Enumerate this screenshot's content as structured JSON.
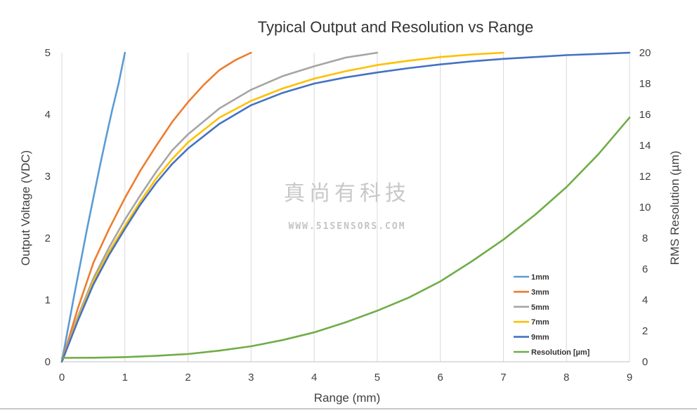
{
  "chart_data": {
    "type": "line",
    "title": "Typical Output and Resolution vs Range",
    "xlabel": "Range (mm)",
    "ylabel": "Output Voltage (VDC)",
    "y2label": "RMS Resolution (µm)",
    "xlim": [
      0,
      9
    ],
    "ylim": [
      0,
      5
    ],
    "y2lim": [
      0,
      20
    ],
    "x_ticks": [
      "0",
      "1",
      "2",
      "3",
      "4",
      "5",
      "6",
      "7",
      "8",
      "9"
    ],
    "y_ticks": [
      "0",
      "1",
      "2",
      "3",
      "4",
      "5"
    ],
    "y2_ticks": [
      "0",
      "2",
      "4",
      "6",
      "8",
      "10",
      "12",
      "14",
      "16",
      "18",
      "20"
    ],
    "grid": "vertical",
    "legend_position": "bottom-right",
    "series": [
      {
        "name": "1mm",
        "color": "#5b9bd5",
        "axis": "left",
        "x": [
          0,
          0.1,
          0.2,
          0.3,
          0.4,
          0.5,
          0.6,
          0.7,
          0.8,
          0.9,
          1.0
        ],
        "y": [
          0.0,
          0.55,
          1.1,
          1.62,
          2.15,
          2.65,
          3.15,
          3.62,
          4.08,
          4.5,
          5.0
        ]
      },
      {
        "name": "3mm",
        "color": "#ed7d31",
        "axis": "left",
        "x": [
          0,
          0.25,
          0.5,
          0.75,
          1.0,
          1.25,
          1.5,
          1.75,
          2.0,
          2.25,
          2.5,
          2.75,
          3.0
        ],
        "y": [
          0.0,
          0.85,
          1.6,
          2.15,
          2.65,
          3.1,
          3.5,
          3.88,
          4.2,
          4.48,
          4.72,
          4.88,
          5.0
        ]
      },
      {
        "name": "5mm",
        "color": "#a5a5a5",
        "axis": "left",
        "x": [
          0,
          0.25,
          0.5,
          0.75,
          1.0,
          1.25,
          1.5,
          1.75,
          2.0,
          2.5,
          3.0,
          3.5,
          4.0,
          4.5,
          5.0
        ],
        "y": [
          0.0,
          0.72,
          1.35,
          1.85,
          2.3,
          2.7,
          3.08,
          3.42,
          3.68,
          4.1,
          4.4,
          4.62,
          4.78,
          4.92,
          5.0
        ]
      },
      {
        "name": "7mm",
        "color": "#ffc000",
        "axis": "left",
        "x": [
          0,
          0.25,
          0.5,
          0.75,
          1.0,
          1.25,
          1.5,
          1.75,
          2.0,
          2.5,
          3.0,
          3.5,
          4.0,
          4.5,
          5.0,
          5.5,
          6.0,
          6.5,
          7.0
        ],
        "y": [
          0.0,
          0.68,
          1.3,
          1.78,
          2.2,
          2.6,
          2.97,
          3.28,
          3.55,
          3.95,
          4.22,
          4.42,
          4.58,
          4.7,
          4.8,
          4.87,
          4.93,
          4.97,
          5.0
        ]
      },
      {
        "name": "9mm",
        "color": "#4472c4",
        "axis": "left",
        "x": [
          0,
          0.25,
          0.5,
          0.75,
          1.0,
          1.25,
          1.5,
          1.75,
          2.0,
          2.5,
          3.0,
          3.5,
          4.0,
          4.5,
          5.0,
          5.5,
          6.0,
          6.5,
          7.0,
          7.5,
          8.0,
          8.5,
          9.0
        ],
        "y": [
          0.0,
          0.65,
          1.25,
          1.73,
          2.15,
          2.55,
          2.9,
          3.2,
          3.45,
          3.85,
          4.15,
          4.35,
          4.5,
          4.6,
          4.68,
          4.75,
          4.81,
          4.86,
          4.9,
          4.93,
          4.96,
          4.98,
          5.0
        ]
      },
      {
        "name": "Resolution [µm]",
        "color": "#70ad47",
        "axis": "right",
        "x": [
          0,
          0.5,
          1.0,
          1.5,
          2.0,
          2.5,
          3.0,
          3.5,
          4.0,
          4.5,
          5.0,
          5.5,
          6.0,
          6.5,
          7.0,
          7.5,
          8.0,
          8.5,
          9.0
        ],
        "y": [
          0.25,
          0.26,
          0.3,
          0.38,
          0.5,
          0.72,
          1.0,
          1.4,
          1.9,
          2.55,
          3.3,
          4.15,
          5.2,
          6.5,
          7.9,
          9.5,
          11.3,
          13.4,
          15.8
        ]
      }
    ]
  },
  "watermark": {
    "cn": "真尚有科技",
    "en": "WWW.51SENSORS.COM"
  }
}
